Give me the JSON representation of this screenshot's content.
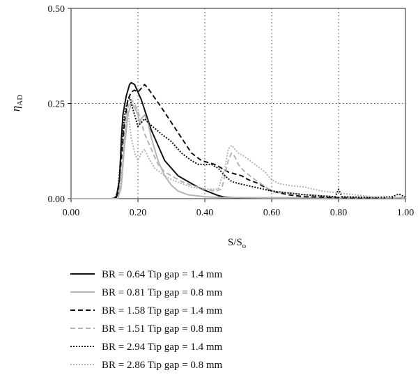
{
  "chart_data": {
    "type": "line",
    "title": "",
    "xlabel": "S/S",
    "xlabel_sub": "o",
    "ylabel": "η",
    "ylabel_sub": "AD",
    "xlim": [
      0,
      1
    ],
    "ylim": [
      0,
      0.5
    ],
    "x_ticks": [
      "0.00",
      "0.20",
      "0.40",
      "0.60",
      "0.80",
      "1.00"
    ],
    "y_ticks": [
      "0.00",
      "0.25",
      "0.50"
    ],
    "grid": "dotted gridlines at x = 0.2, 0.4, 0.6, 0.8 and y = 0.25",
    "legend_position": "below",
    "series": [
      {
        "name": "BR = 0.64 Tip gap = 1.4 mm",
        "color": "#111111",
        "style": "solid",
        "points": [
          [
            0,
            0
          ],
          [
            0.12,
            0
          ],
          [
            0.135,
            0.002
          ],
          [
            0.145,
            0.05
          ],
          [
            0.15,
            0.15
          ],
          [
            0.155,
            0.22
          ],
          [
            0.165,
            0.27
          ],
          [
            0.175,
            0.3
          ],
          [
            0.18,
            0.305
          ],
          [
            0.19,
            0.3
          ],
          [
            0.2,
            0.28
          ],
          [
            0.21,
            0.26
          ],
          [
            0.225,
            0.22
          ],
          [
            0.24,
            0.18
          ],
          [
            0.26,
            0.14
          ],
          [
            0.28,
            0.1
          ],
          [
            0.3,
            0.08
          ],
          [
            0.32,
            0.06
          ],
          [
            0.34,
            0.05
          ],
          [
            0.36,
            0.04
          ],
          [
            0.38,
            0.03
          ],
          [
            0.4,
            0.022
          ],
          [
            0.42,
            0.015
          ],
          [
            0.44,
            0.008
          ],
          [
            0.46,
            0.004
          ],
          [
            0.5,
            0.002
          ],
          [
            0.6,
            0.002
          ],
          [
            0.75,
            0.002
          ],
          [
            0.8,
            0.002
          ],
          [
            0.9,
            0.002
          ],
          [
            1,
            0.002
          ]
        ]
      },
      {
        "name": "BR = 0.81 Tip gap = 0.8 mm",
        "color": "#b5b5b5",
        "style": "solid",
        "points": [
          [
            0,
            0
          ],
          [
            0.14,
            0
          ],
          [
            0.15,
            0.03
          ],
          [
            0.16,
            0.14
          ],
          [
            0.17,
            0.22
          ],
          [
            0.18,
            0.25
          ],
          [
            0.19,
            0.24
          ],
          [
            0.2,
            0.22
          ],
          [
            0.205,
            0.2
          ],
          [
            0.21,
            0.21
          ],
          [
            0.22,
            0.22
          ],
          [
            0.23,
            0.2
          ],
          [
            0.24,
            0.16
          ],
          [
            0.26,
            0.1
          ],
          [
            0.28,
            0.06
          ],
          [
            0.3,
            0.035
          ],
          [
            0.32,
            0.02
          ],
          [
            0.35,
            0.01
          ],
          [
            0.4,
            0.005
          ],
          [
            0.45,
            0.003
          ],
          [
            0.5,
            0.003
          ],
          [
            0.6,
            0.002
          ],
          [
            0.8,
            0.002
          ],
          [
            1,
            0.002
          ]
        ]
      },
      {
        "name": "BR = 1.58 Tip gap = 1.4 mm",
        "color": "#111111",
        "style": "dashed",
        "points": [
          [
            0,
            0
          ],
          [
            0.13,
            0
          ],
          [
            0.14,
            0.01
          ],
          [
            0.15,
            0.1
          ],
          [
            0.16,
            0.2
          ],
          [
            0.17,
            0.26
          ],
          [
            0.18,
            0.28
          ],
          [
            0.19,
            0.285
          ],
          [
            0.2,
            0.28
          ],
          [
            0.21,
            0.29
          ],
          [
            0.22,
            0.3
          ],
          [
            0.23,
            0.29
          ],
          [
            0.25,
            0.265
          ],
          [
            0.27,
            0.24
          ],
          [
            0.3,
            0.2
          ],
          [
            0.33,
            0.16
          ],
          [
            0.36,
            0.12
          ],
          [
            0.39,
            0.1
          ],
          [
            0.41,
            0.095
          ],
          [
            0.43,
            0.09
          ],
          [
            0.45,
            0.08
          ],
          [
            0.47,
            0.07
          ],
          [
            0.49,
            0.065
          ],
          [
            0.51,
            0.06
          ],
          [
            0.53,
            0.05
          ],
          [
            0.56,
            0.04
          ],
          [
            0.6,
            0.02
          ],
          [
            0.65,
            0.01
          ],
          [
            0.7,
            0.005
          ],
          [
            0.8,
            0.003
          ],
          [
            0.9,
            0.002
          ],
          [
            1,
            0.002
          ]
        ]
      },
      {
        "name": "BR = 1.51 Tip gap = 0.8 mm",
        "color": "#b5b5b5",
        "style": "dashed",
        "points": [
          [
            0,
            0
          ],
          [
            0.14,
            0
          ],
          [
            0.15,
            0.04
          ],
          [
            0.16,
            0.16
          ],
          [
            0.17,
            0.24
          ],
          [
            0.18,
            0.26
          ],
          [
            0.19,
            0.25
          ],
          [
            0.2,
            0.23
          ],
          [
            0.21,
            0.2
          ],
          [
            0.22,
            0.17
          ],
          [
            0.24,
            0.13
          ],
          [
            0.26,
            0.09
          ],
          [
            0.28,
            0.07
          ],
          [
            0.3,
            0.06
          ],
          [
            0.33,
            0.045
          ],
          [
            0.36,
            0.035
          ],
          [
            0.4,
            0.025
          ],
          [
            0.43,
            0.02
          ],
          [
            0.45,
            0.025
          ],
          [
            0.46,
            0.06
          ],
          [
            0.47,
            0.1
          ],
          [
            0.48,
            0.12
          ],
          [
            0.49,
            0.11
          ],
          [
            0.5,
            0.09
          ],
          [
            0.52,
            0.07
          ],
          [
            0.55,
            0.05
          ],
          [
            0.6,
            0.02
          ],
          [
            0.7,
            0.01
          ],
          [
            0.8,
            0.005
          ],
          [
            0.9,
            0.003
          ],
          [
            1,
            0.002
          ]
        ]
      },
      {
        "name": "BR = 2.94 Tip gap = 1.4 mm",
        "color": "#111111",
        "style": "dotted",
        "points": [
          [
            0,
            0
          ],
          [
            0.13,
            0
          ],
          [
            0.14,
            0.02
          ],
          [
            0.15,
            0.12
          ],
          [
            0.16,
            0.22
          ],
          [
            0.17,
            0.26
          ],
          [
            0.175,
            0.265
          ],
          [
            0.18,
            0.25
          ],
          [
            0.19,
            0.22
          ],
          [
            0.2,
            0.19
          ],
          [
            0.21,
            0.2
          ],
          [
            0.22,
            0.21
          ],
          [
            0.23,
            0.2
          ],
          [
            0.25,
            0.185
          ],
          [
            0.27,
            0.17
          ],
          [
            0.3,
            0.15
          ],
          [
            0.33,
            0.12
          ],
          [
            0.36,
            0.1
          ],
          [
            0.38,
            0.09
          ],
          [
            0.4,
            0.09
          ],
          [
            0.42,
            0.09
          ],
          [
            0.44,
            0.08
          ],
          [
            0.46,
            0.06
          ],
          [
            0.48,
            0.045
          ],
          [
            0.5,
            0.04
          ],
          [
            0.55,
            0.03
          ],
          [
            0.6,
            0.02
          ],
          [
            0.7,
            0.01
          ],
          [
            0.79,
            0.005
          ],
          [
            0.8,
            0.025
          ],
          [
            0.81,
            0.005
          ],
          [
            0.9,
            0.003
          ],
          [
            0.96,
            0.005
          ],
          [
            0.98,
            0.012
          ],
          [
            1,
            0.004
          ]
        ]
      },
      {
        "name": "BR = 2.86 Tip gap = 0.8 mm",
        "color": "#b5b5b5",
        "style": "dotted",
        "points": [
          [
            0,
            0
          ],
          [
            0.14,
            0
          ],
          [
            0.15,
            0.05
          ],
          [
            0.16,
            0.15
          ],
          [
            0.165,
            0.22
          ],
          [
            0.17,
            0.23
          ],
          [
            0.18,
            0.16
          ],
          [
            0.19,
            0.12
          ],
          [
            0.2,
            0.1
          ],
          [
            0.21,
            0.12
          ],
          [
            0.22,
            0.13
          ],
          [
            0.23,
            0.11
          ],
          [
            0.25,
            0.08
          ],
          [
            0.28,
            0.06
          ],
          [
            0.3,
            0.05
          ],
          [
            0.33,
            0.04
          ],
          [
            0.36,
            0.03
          ],
          [
            0.4,
            0.025
          ],
          [
            0.44,
            0.025
          ],
          [
            0.46,
            0.08
          ],
          [
            0.47,
            0.13
          ],
          [
            0.48,
            0.14
          ],
          [
            0.49,
            0.13
          ],
          [
            0.5,
            0.12
          ],
          [
            0.52,
            0.11
          ],
          [
            0.55,
            0.09
          ],
          [
            0.58,
            0.07
          ],
          [
            0.6,
            0.05
          ],
          [
            0.62,
            0.04
          ],
          [
            0.65,
            0.035
          ],
          [
            0.7,
            0.03
          ],
          [
            0.75,
            0.02
          ],
          [
            0.8,
            0.015
          ],
          [
            0.85,
            0.01
          ],
          [
            0.9,
            0.005
          ],
          [
            0.95,
            0.003
          ],
          [
            1,
            0.002
          ]
        ]
      }
    ]
  }
}
